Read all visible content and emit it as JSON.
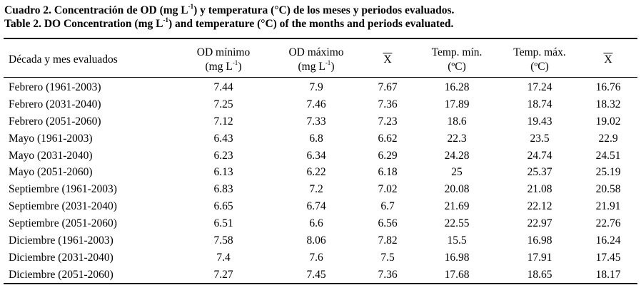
{
  "captions": {
    "es": {
      "prefix": "Cuadro 2. Concentración de OD (mg L",
      "sup": "-1",
      "suffix": ") y temperatura (°C) de los meses y periodos evaluados."
    },
    "en": {
      "prefix": "Table 2. DO Concentration (mg L",
      "sup": "-1",
      "suffix": ") and temperature (°C) of the months and periods evaluated."
    }
  },
  "table": {
    "headers": {
      "period": "Década y mes evaluados",
      "od_min": {
        "line1": "OD mínimo",
        "line2_prefix": "(mg L",
        "sup": "-1",
        "line2_suffix": ")"
      },
      "od_max": {
        "line1": "OD máximo",
        "line2_prefix": "(mg L",
        "sup": "-1",
        "line2_suffix": ")"
      },
      "od_mean": "X",
      "temp_min": {
        "line1": "Temp. mín.",
        "line2": "(ºC)"
      },
      "temp_max": {
        "line1": "Temp. máx.",
        "line2": "(ºC)"
      },
      "temp_mean": "X"
    },
    "rows": [
      [
        "Febrero (1961-2003)",
        "7.44",
        "7.9",
        "7.67",
        "16.28",
        "17.24",
        "16.76"
      ],
      [
        "Febrero (2031-2040)",
        "7.25",
        "7.46",
        "7.36",
        "17.89",
        "18.74",
        "18.32"
      ],
      [
        "Febrero (2051-2060)",
        "7.12",
        "7.33",
        "7.23",
        "18.6",
        "19.43",
        "19.02"
      ],
      [
        "Mayo  (1961-2003)",
        "6.43",
        "6.8",
        "6.62",
        "22.3",
        "23.5",
        "22.9"
      ],
      [
        "Mayo (2031-2040)",
        "6.23",
        "6.34",
        "6.29",
        "24.28",
        "24.74",
        "24.51"
      ],
      [
        "Mayo (2051-2060)",
        "6.13",
        "6.22",
        "6.18",
        "25",
        "25.37",
        "25.19"
      ],
      [
        "Septiembre  (1961-2003)",
        "6.83",
        "7.2",
        "7.02",
        "20.08",
        "21.08",
        "20.58"
      ],
      [
        "Septiembre (2031-2040)",
        "6.65",
        "6.74",
        "6.7",
        "21.69",
        "22.12",
        "21.91"
      ],
      [
        "Septiembre (2051-2060)",
        "6.51",
        "6.6",
        "6.56",
        "22.55",
        "22.97",
        "22.76"
      ],
      [
        "Diciembre  (1961-2003)",
        "7.58",
        "8.06",
        "7.82",
        "15.5",
        "16.98",
        "16.24"
      ],
      [
        "Diciembre (2031-2040)",
        "7.4",
        "7.6",
        "7.5",
        "16.98",
        "17.91",
        "17.45"
      ],
      [
        "Diciembre (2051-2060)",
        "7.27",
        "7.45",
        "7.36",
        "17.68",
        "18.65",
        "18.17"
      ]
    ]
  }
}
